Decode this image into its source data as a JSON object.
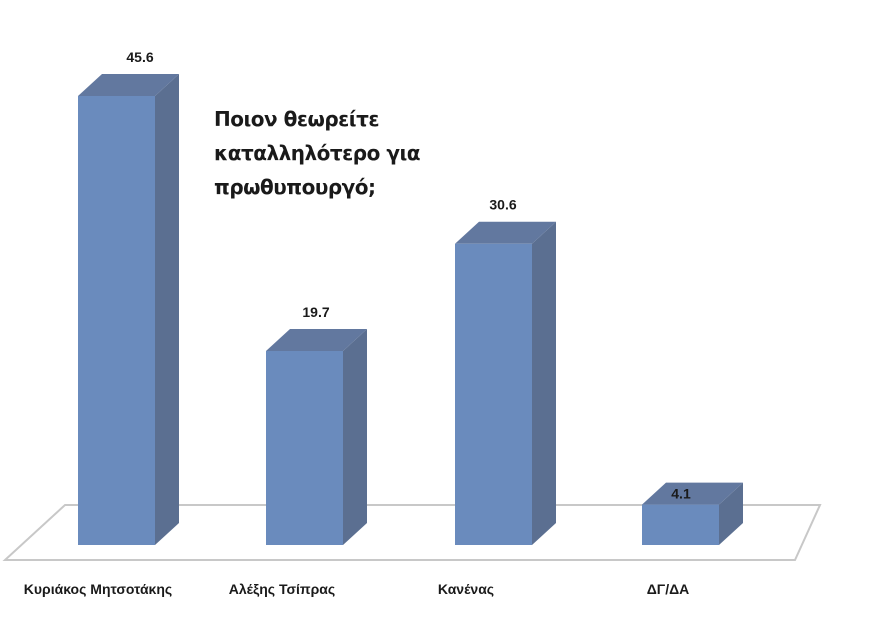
{
  "chart_data": {
    "type": "bar",
    "title": "Ποιον θεωρείτε καταλληλότερο για πρωθυπουργό;",
    "categories": [
      "Κυριάκος Μητσοτάκης",
      "Αλέξης Τσίπρας",
      "Κανένας",
      "ΔΓ/ΔΑ"
    ],
    "values": [
      45.6,
      19.7,
      30.6,
      4.1
    ],
    "value_labels": [
      "45.6",
      "19.7",
      "30.6",
      "4.1"
    ],
    "xlabel": "",
    "ylabel": "",
    "ylim": [
      0,
      50
    ],
    "grid": false,
    "legend": "none",
    "style": "3d-column",
    "colors": {
      "front": "#6a8bbd",
      "side": "#5b6f91",
      "top": "#62789f",
      "floor": "#c8c8c8"
    }
  },
  "title_lines": "Ποιον θεωρείτε\nκαταλληλότερο για\nπρωθυπουργό;"
}
